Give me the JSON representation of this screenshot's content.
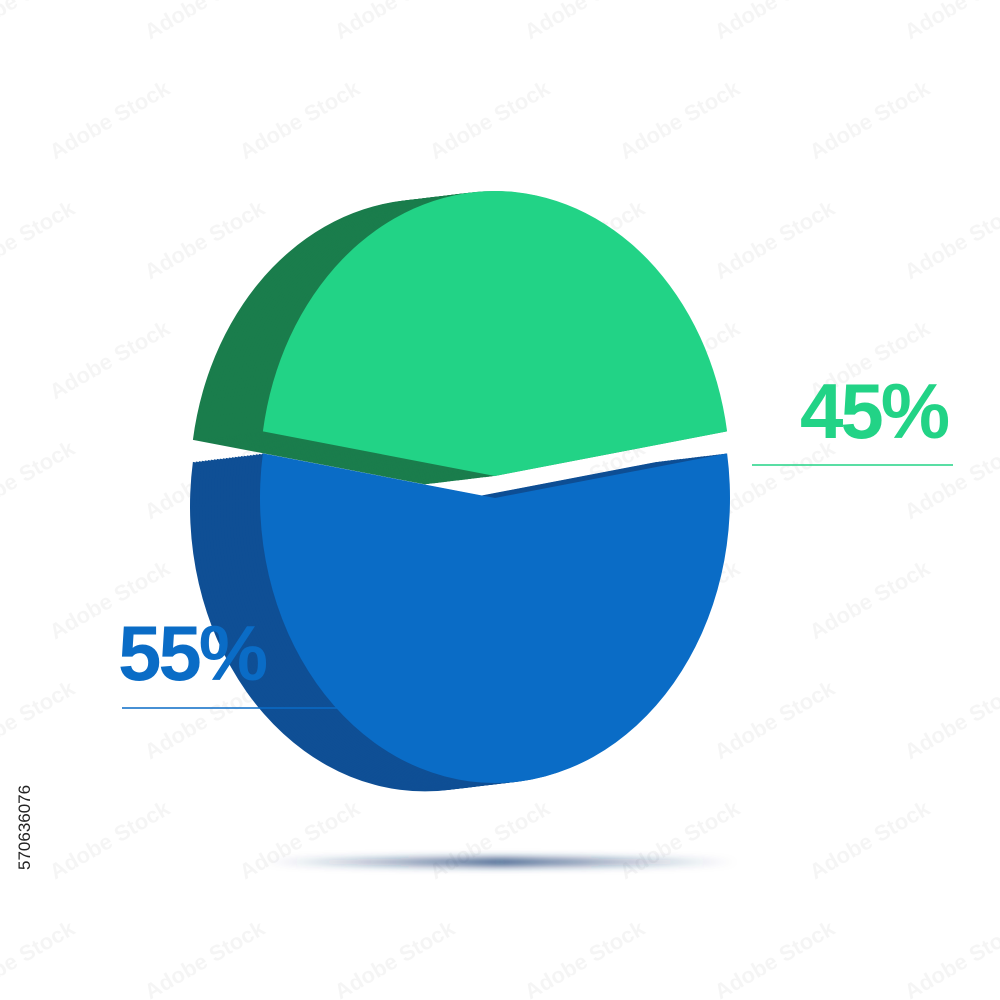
{
  "chart_data": {
    "type": "pie",
    "values": [
      45,
      55
    ],
    "value_labels": [
      "45%",
      "55%"
    ],
    "colors": [
      "#22d386",
      "#0a6cc6"
    ],
    "side_colors": [
      "#1a7d4c",
      "#0f4f95"
    ],
    "stock_id": "570636076",
    "watermark": "Adobe Stock"
  }
}
